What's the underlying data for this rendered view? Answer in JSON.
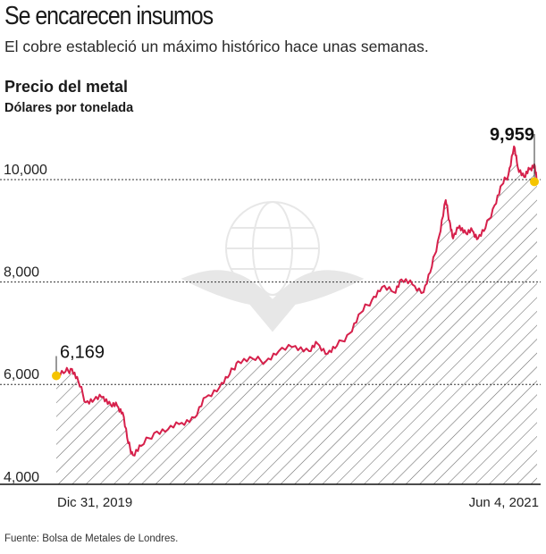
{
  "header": {
    "title": "Se encarecen insumos",
    "subtitle": "El cobre estableció un máximo histórico hace unas semanas."
  },
  "chart_data": {
    "type": "area",
    "title": "Precio del metal",
    "units": "Dólares por tonelada",
    "xlabel": "",
    "ylabel": "",
    "ylim": [
      4000,
      10700
    ],
    "y_ticks": [
      4000,
      6000,
      8000,
      10000
    ],
    "y_tick_labels": [
      "4,000",
      "6,000",
      "8,000",
      "10,000"
    ],
    "x_range": [
      "2019-12-31",
      "2021-06-04"
    ],
    "x_tick_labels": [
      "Dic 31, 2019",
      "Jun 4, 2021"
    ],
    "grid": "dotted horizontal at 6,000, 8,000 and 10,000",
    "fill": "diagonal hatch under line",
    "series": [
      {
        "color": "#d6204b",
        "points": [
          [
            "2019-12-31",
            6169
          ],
          [
            "2020-01-10",
            6250
          ],
          [
            "2020-01-17",
            6300
          ],
          [
            "2020-01-24",
            6050
          ],
          [
            "2020-02-01",
            5650
          ],
          [
            "2020-02-10",
            5700
          ],
          [
            "2020-02-20",
            5760
          ],
          [
            "2020-02-28",
            5600
          ],
          [
            "2020-03-06",
            5580
          ],
          [
            "2020-03-12",
            5450
          ],
          [
            "2020-03-18",
            4850
          ],
          [
            "2020-03-23",
            4620
          ],
          [
            "2020-04-01",
            4800
          ],
          [
            "2020-04-15",
            5050
          ],
          [
            "2020-04-30",
            5120
          ],
          [
            "2020-05-15",
            5250
          ],
          [
            "2020-05-29",
            5350
          ],
          [
            "2020-06-10",
            5750
          ],
          [
            "2020-06-25",
            5950
          ],
          [
            "2020-07-06",
            6200
          ],
          [
            "2020-07-15",
            6450
          ],
          [
            "2020-07-31",
            6500
          ],
          [
            "2020-08-14",
            6450
          ],
          [
            "2020-08-28",
            6650
          ],
          [
            "2020-09-15",
            6750
          ],
          [
            "2020-09-30",
            6650
          ],
          [
            "2020-10-09",
            6800
          ],
          [
            "2020-10-20",
            6600
          ],
          [
            "2020-10-30",
            6750
          ],
          [
            "2020-11-13",
            7000
          ],
          [
            "2020-11-25",
            7400
          ],
          [
            "2020-12-07",
            7650
          ],
          [
            "2020-12-18",
            7900
          ],
          [
            "2020-12-31",
            7800
          ],
          [
            "2021-01-08",
            8050
          ],
          [
            "2021-01-20",
            7950
          ],
          [
            "2021-02-01",
            7800
          ],
          [
            "2021-02-10",
            8300
          ],
          [
            "2021-02-18",
            8900
          ],
          [
            "2021-02-25",
            9600
          ],
          [
            "2021-03-01",
            9200
          ],
          [
            "2021-03-05",
            8850
          ],
          [
            "2021-03-12",
            9100
          ],
          [
            "2021-03-19",
            8950
          ],
          [
            "2021-03-26",
            9000
          ],
          [
            "2021-04-01",
            8850
          ],
          [
            "2021-04-09",
            9050
          ],
          [
            "2021-04-19",
            9500
          ],
          [
            "2021-04-27",
            9900
          ],
          [
            "2021-05-04",
            10100
          ],
          [
            "2021-05-10",
            10650
          ],
          [
            "2021-05-14",
            10250
          ],
          [
            "2021-05-21",
            10050
          ],
          [
            "2021-05-27",
            10200
          ],
          [
            "2021-06-01",
            10300
          ],
          [
            "2021-06-04",
            9959
          ]
        ]
      }
    ],
    "annotations": [
      {
        "date": "2019-12-31",
        "value": 6169,
        "label": "6,169"
      },
      {
        "date": "2021-06-04",
        "value": 9959,
        "label": "9,959"
      }
    ]
  },
  "footer": {
    "source": "Fuente: Bolsa de Metales de Londres."
  }
}
